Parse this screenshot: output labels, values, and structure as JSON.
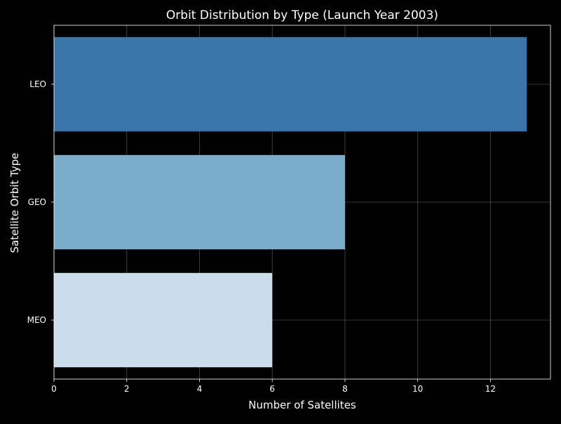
{
  "chart_data": {
    "type": "bar",
    "orientation": "horizontal",
    "title": "Orbit Distribution by Type (Launch Year 2003)",
    "xlabel": "Number of Satellites",
    "ylabel": "Satellite Orbit Type",
    "categories": [
      "LEO",
      "GEO",
      "MEO"
    ],
    "values": [
      13,
      8,
      6
    ],
    "colors": [
      "#3a75aa",
      "#7aadcc",
      "#cbdcec"
    ],
    "xlim": [
      0,
      13.65
    ],
    "xticks": [
      0,
      2,
      4,
      6,
      8,
      10,
      12
    ],
    "grid": true,
    "legend": "none",
    "background": "#000000",
    "text_color": "#ffffff",
    "grid_color": "#ffffff"
  }
}
